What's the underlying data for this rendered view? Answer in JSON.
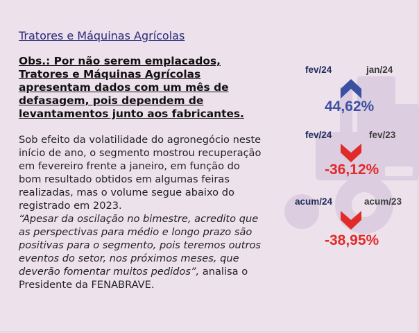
{
  "section": {
    "title": "Tratores e Máquinas Agrícolas"
  },
  "obs": {
    "text": "Obs.: Por não serem emplacados, Tratores e Máquinas Agrícolas apresentam dados com um mês de defasagem, pois dependem de levantamentos junto aos fabricantes."
  },
  "body": {
    "paragraph": "Sob efeito da volatilidade do agronegócio neste início de ano, o segmento mostrou recuperação em fevereiro frente a janeiro, em função do bom resultado obtidos em algumas feiras realizadas, mas o volume segue abaixo do registrado em 2023.",
    "quote": "“Apesar da oscilação no bimestre, acredito que as perspectivas para médio e longo prazo são positivas para o segmento, pois teremos outros eventos do setor, nos próximos meses, que deverão fomentar muitos pedidos”,",
    "attribution": " analisa o Presidente da FENABRAVE."
  },
  "comparisons": [
    {
      "current": "fev/24",
      "previous": "jan/24",
      "value": "44,62%",
      "direction": "up",
      "arrow_icon": "chevron-up-icon",
      "color": "#3a50a2"
    },
    {
      "current": "fev/24",
      "previous": "fev/23",
      "value": "-36,12%",
      "direction": "down",
      "arrow_icon": "chevron-down-icon",
      "color": "#e12a2a"
    },
    {
      "current": "acum/24",
      "previous": "acum/23",
      "value": "-38,95%",
      "direction": "down",
      "arrow_icon": "chevron-down-icon",
      "color": "#e12a2a"
    }
  ],
  "colors": {
    "background": "#ede1ec",
    "title": "#2a2a7a",
    "up": "#3a50a2",
    "down": "#e12a2a",
    "watermark": "#ddcde0"
  }
}
